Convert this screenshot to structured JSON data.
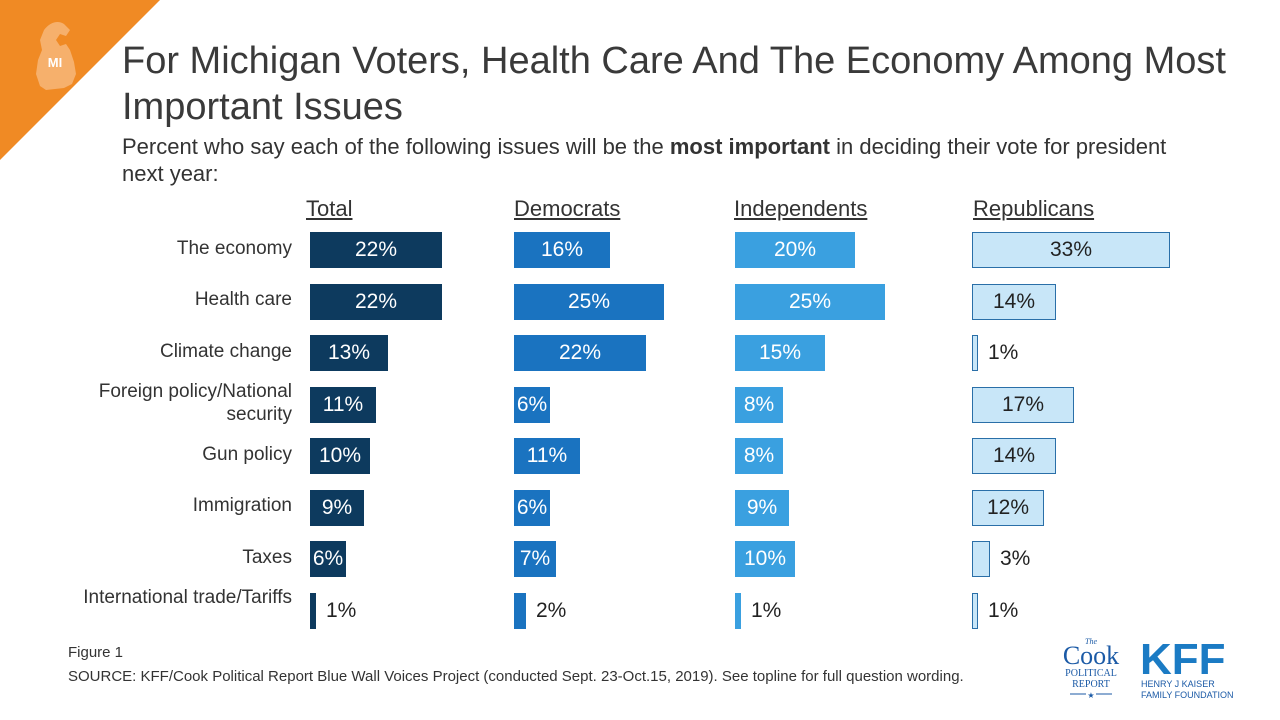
{
  "header": {
    "state_badge": "MI",
    "title": "For Michigan Voters, Health Care And The Economy Among Most Important Issues",
    "subtitle_pre": "Percent who say each of the following issues will be the ",
    "subtitle_bold": "most important",
    "subtitle_post": " in deciding their vote for president next year:"
  },
  "chart_data": {
    "type": "bar",
    "orientation": "horizontal",
    "categories": [
      "The economy",
      "Health care",
      "Climate change",
      "Foreign policy/National security",
      "Gun policy",
      "Immigration",
      "Taxes",
      "International trade/Tariffs"
    ],
    "series": [
      {
        "name": "Total",
        "values": [
          22,
          22,
          13,
          11,
          10,
          9,
          6,
          1
        ],
        "color": "#0d3a5e"
      },
      {
        "name": "Democrats",
        "values": [
          16,
          25,
          22,
          6,
          11,
          6,
          7,
          2
        ],
        "color": "#1a73c0"
      },
      {
        "name": "Independents",
        "values": [
          20,
          25,
          15,
          8,
          8,
          9,
          10,
          1
        ],
        "color": "#3aa0e0"
      },
      {
        "name": "Republicans",
        "values": [
          33,
          14,
          1,
          17,
          14,
          12,
          3,
          1
        ],
        "color": "#c8e6f8"
      }
    ],
    "value_suffix": "%"
  },
  "footer": {
    "figure": "Figure 1",
    "source": "SOURCE: KFF/Cook Political Report Blue Wall Voices Project (conducted Sept. 23-Oct.15, 2019). See topline for full question wording."
  },
  "logos": {
    "cook_the": "The",
    "cook_name": "Cook",
    "cook_sub1": "POLITICAL",
    "cook_sub2": "REPORT",
    "kff_name": "KFF",
    "kff_sub1": "HENRY J KAISER",
    "kff_sub2": "FAMILY FOUNDATION"
  }
}
